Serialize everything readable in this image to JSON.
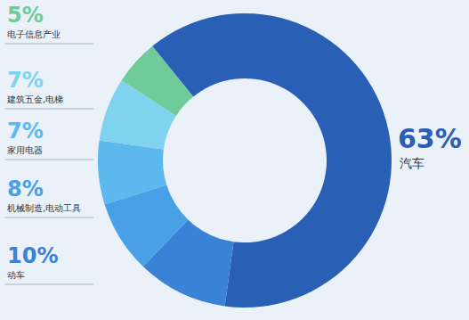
{
  "chart_data": {
    "type": "pie",
    "categories": [
      "汽车",
      "动车",
      "机械制造,电动工具",
      "家用电器",
      "建筑五金,电梯",
      "电子信息产业"
    ],
    "values": [
      63,
      10,
      8,
      7,
      7,
      5
    ],
    "value_labels": [
      "63%",
      "10%",
      "8%",
      "7%",
      "7%",
      "5%"
    ],
    "colors": [
      "#2a5fb6",
      "#3a82d6",
      "#4aa0e6",
      "#5cb8ef",
      "#7fd3ee",
      "#6fcc9a"
    ],
    "data_labels": true
  }
}
